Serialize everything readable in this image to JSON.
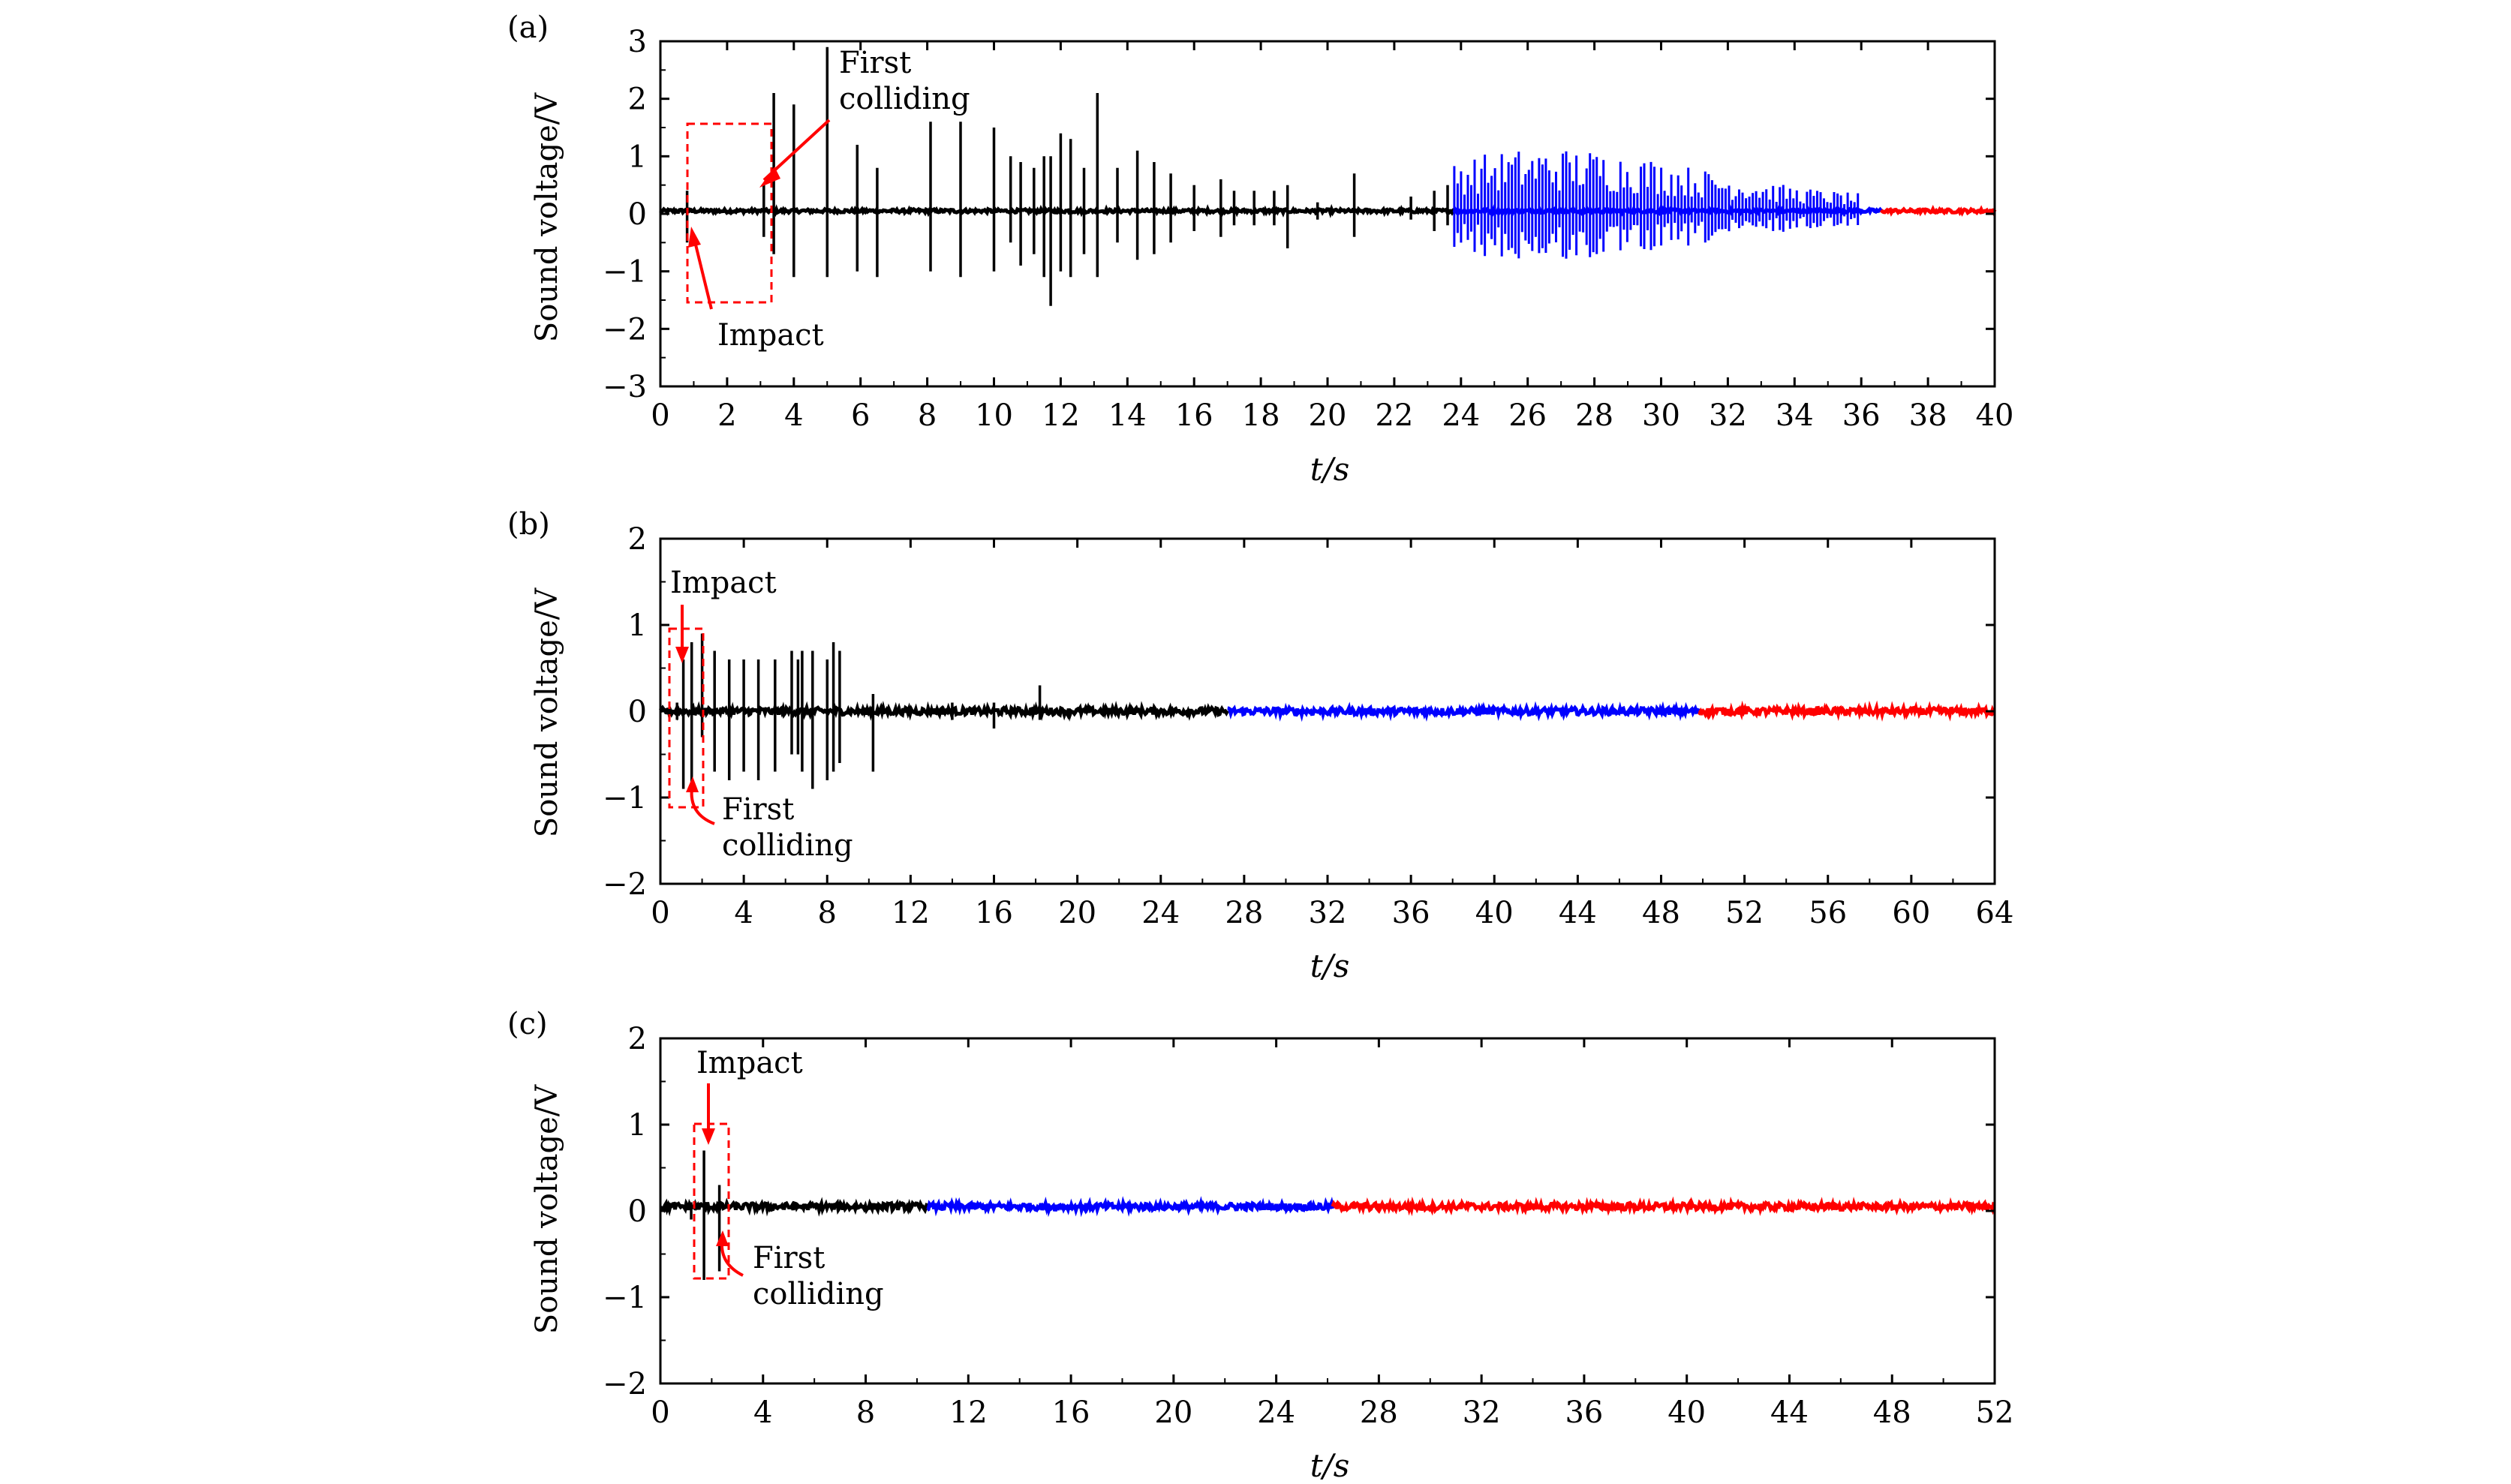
{
  "colors": {
    "phase1": "#000000",
    "phase2": "#0000ff",
    "phase3": "#ff0000",
    "annotation": "#ff0000",
    "axes": "#000000"
  },
  "chart_data": [
    {
      "panel_label": "(a)",
      "type": "line",
      "xlabel": "t/s",
      "ylabel": "Sound voltage/V",
      "xlim": [
        0,
        40
      ],
      "ylim": [
        -3,
        3
      ],
      "x_ticks": [
        0,
        2,
        4,
        6,
        8,
        10,
        12,
        14,
        16,
        18,
        20,
        22,
        24,
        26,
        28,
        30,
        32,
        34,
        36,
        38,
        40
      ],
      "y_ticks": [
        -3,
        -2,
        -1,
        0,
        1,
        2,
        3
      ],
      "y_tick_labels": [
        "−3",
        "−2",
        "−1",
        "0",
        "1",
        "2",
        "3"
      ],
      "baseline": 0.05,
      "noise_amplitude": 0.03,
      "segments": [
        {
          "color": "#000000",
          "x_start": 0,
          "x_end": 23.8
        },
        {
          "color": "#0000ff",
          "x_start": 23.8,
          "x_end": 36.6
        },
        {
          "color": "#ff0000",
          "x_start": 36.6,
          "x_end": 40
        }
      ],
      "spikes": [
        {
          "x": 0.8,
          "up": 0.4,
          "down": -0.5
        },
        {
          "x": 3.1,
          "up": 0.5,
          "down": -0.4
        },
        {
          "x": 3.4,
          "up": 2.1,
          "down": -0.7
        },
        {
          "x": 4.0,
          "up": 1.9,
          "down": -1.1
        },
        {
          "x": 5.0,
          "up": 2.9,
          "down": -1.1
        },
        {
          "x": 5.9,
          "up": 1.2,
          "down": -1.0
        },
        {
          "x": 6.5,
          "up": 0.8,
          "down": -1.1
        },
        {
          "x": 8.1,
          "up": 1.6,
          "down": -1.0
        },
        {
          "x": 9.0,
          "up": 1.6,
          "down": -1.1
        },
        {
          "x": 10.0,
          "up": 1.5,
          "down": -1.0
        },
        {
          "x": 10.5,
          "up": 1.0,
          "down": -0.5
        },
        {
          "x": 10.8,
          "up": 0.9,
          "down": -0.9
        },
        {
          "x": 11.2,
          "up": 0.8,
          "down": -0.7
        },
        {
          "x": 11.5,
          "up": 1.0,
          "down": -1.1
        },
        {
          "x": 11.7,
          "up": 1.0,
          "down": -1.6
        },
        {
          "x": 12.0,
          "up": 1.4,
          "down": -1.0
        },
        {
          "x": 12.3,
          "up": 1.3,
          "down": -1.1
        },
        {
          "x": 12.7,
          "up": 0.8,
          "down": -0.7
        },
        {
          "x": 13.1,
          "up": 2.1,
          "down": -1.1
        },
        {
          "x": 13.7,
          "up": 0.8,
          "down": -0.5
        },
        {
          "x": 14.3,
          "up": 1.1,
          "down": -0.8
        },
        {
          "x": 14.8,
          "up": 0.9,
          "down": -0.7
        },
        {
          "x": 15.3,
          "up": 0.7,
          "down": -0.5
        },
        {
          "x": 16.0,
          "up": 0.5,
          "down": -0.3
        },
        {
          "x": 16.8,
          "up": 0.6,
          "down": -0.4
        },
        {
          "x": 17.2,
          "up": 0.4,
          "down": -0.2
        },
        {
          "x": 17.8,
          "up": 0.4,
          "down": -0.2
        },
        {
          "x": 18.4,
          "up": 0.4,
          "down": -0.2
        },
        {
          "x": 18.8,
          "up": 0.5,
          "down": -0.6
        },
        {
          "x": 19.7,
          "up": 0.2,
          "down": -0.1
        },
        {
          "x": 20.8,
          "up": 0.7,
          "down": -0.4
        },
        {
          "x": 22.5,
          "up": 0.3,
          "down": -0.1
        },
        {
          "x": 23.2,
          "up": 0.4,
          "down": -0.3
        },
        {
          "x": 23.6,
          "up": 0.5,
          "down": -0.2
        }
      ],
      "dense_bursts": [
        {
          "x_start": 23.8,
          "x_end": 36.0,
          "count": 120,
          "max_amp": 1.1,
          "color": "#0000ff"
        }
      ],
      "annotations": [
        {
          "text": "Impact"
        },
        {
          "text": "First"
        },
        {
          "text": "colliding"
        }
      ]
    },
    {
      "panel_label": "(b)",
      "type": "line",
      "xlabel": "t/s",
      "ylabel": "Sound voltage/V",
      "xlim": [
        0,
        64
      ],
      "ylim": [
        -2,
        2
      ],
      "x_ticks": [
        0,
        4,
        8,
        12,
        16,
        20,
        24,
        28,
        32,
        36,
        40,
        44,
        48,
        52,
        56,
        60,
        64
      ],
      "y_ticks": [
        -2,
        -1,
        0,
        1,
        2
      ],
      "y_tick_labels": [
        "−2",
        "−1",
        "0",
        "1",
        "2"
      ],
      "baseline": 0.0,
      "noise_amplitude": 0.04,
      "segments": [
        {
          "color": "#000000",
          "x_start": 0,
          "x_end": 27.2
        },
        {
          "color": "#0000ff",
          "x_start": 27.2,
          "x_end": 49.8
        },
        {
          "color": "#ff0000",
          "x_start": 49.8,
          "x_end": 64
        }
      ],
      "spikes": [
        {
          "x": 0.8,
          "up": 0.1,
          "down": -0.1
        },
        {
          "x": 1.1,
          "up": 0.6,
          "down": -0.9
        },
        {
          "x": 1.5,
          "up": 0.8,
          "down": -1.0
        },
        {
          "x": 2.0,
          "up": 0.9,
          "down": -0.3
        },
        {
          "x": 2.6,
          "up": 0.7,
          "down": -0.7
        },
        {
          "x": 3.3,
          "up": 0.6,
          "down": -0.8
        },
        {
          "x": 4.0,
          "up": 0.6,
          "down": -0.7
        },
        {
          "x": 4.7,
          "up": 0.6,
          "down": -0.8
        },
        {
          "x": 5.5,
          "up": 0.6,
          "down": -0.7
        },
        {
          "x": 6.3,
          "up": 0.7,
          "down": -0.5
        },
        {
          "x": 6.6,
          "up": 0.6,
          "down": -0.5
        },
        {
          "x": 6.8,
          "up": 0.7,
          "down": -0.7
        },
        {
          "x": 7.3,
          "up": 0.7,
          "down": -0.9
        },
        {
          "x": 8.0,
          "up": 0.6,
          "down": -0.8
        },
        {
          "x": 8.3,
          "up": 0.8,
          "down": -0.7
        },
        {
          "x": 8.6,
          "up": 0.7,
          "down": -0.6
        },
        {
          "x": 10.2,
          "up": 0.2,
          "down": -0.7
        },
        {
          "x": 14.0,
          "up": 0.1,
          "down": -0.1
        },
        {
          "x": 16.0,
          "up": 0.1,
          "down": -0.2
        },
        {
          "x": 18.2,
          "up": 0.3,
          "down": -0.1
        }
      ],
      "dense_bursts": [],
      "annotations": [
        {
          "text": "Impact"
        },
        {
          "text": "First"
        },
        {
          "text": "colliding"
        }
      ]
    },
    {
      "panel_label": "(c)",
      "type": "line",
      "xlabel": "t/s",
      "ylabel": "Sound voltage/V",
      "xlim": [
        0,
        52
      ],
      "ylim": [
        -2,
        2
      ],
      "x_ticks": [
        0,
        4,
        8,
        12,
        16,
        20,
        24,
        28,
        32,
        36,
        40,
        44,
        48,
        52
      ],
      "y_ticks": [
        -2,
        -1,
        0,
        1,
        2
      ],
      "y_tick_labels": [
        "−2",
        "−1",
        "0",
        "1",
        "2"
      ],
      "baseline": 0.05,
      "noise_amplitude": 0.04,
      "segments": [
        {
          "color": "#000000",
          "x_start": 0,
          "x_end": 10.4
        },
        {
          "color": "#0000ff",
          "x_start": 10.4,
          "x_end": 26.2
        },
        {
          "color": "#ff0000",
          "x_start": 26.2,
          "x_end": 52
        }
      ],
      "spikes": [
        {
          "x": 1.2,
          "up": 0.1,
          "down": -0.1
        },
        {
          "x": 1.7,
          "up": 0.7,
          "down": -0.8
        },
        {
          "x": 2.3,
          "up": 0.3,
          "down": -0.7
        }
      ],
      "dense_bursts": [],
      "annotations": [
        {
          "text": "Impact"
        },
        {
          "text": "First"
        },
        {
          "text": "colliding"
        }
      ]
    }
  ]
}
